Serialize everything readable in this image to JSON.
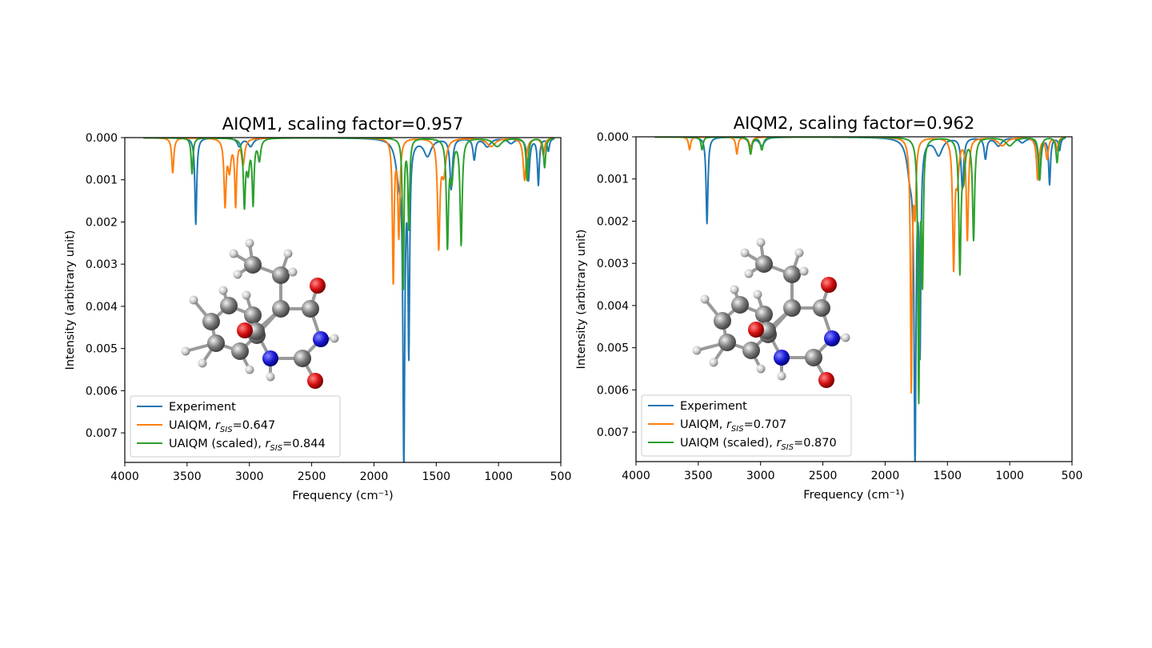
{
  "chart_data": [
    {
      "type": "line",
      "title": "AIQM1, scaling factor=0.957",
      "xlabel": "Frequency (cm⁻¹)",
      "ylabel": "Intensity (arbitrary unit)",
      "xlim": [
        4000,
        500
      ],
      "ylim": [
        0.0,
        0.0077
      ],
      "y_inverted": true,
      "grid": false,
      "legend_position": "lower-left",
      "x_ticks": [
        "4000",
        "3500",
        "3000",
        "2500",
        "2000",
        "1500",
        "1000",
        "500"
      ],
      "y_ticks": [
        "0.000",
        "0.001",
        "0.002",
        "0.003",
        "0.004",
        "0.005",
        "0.006",
        "0.007"
      ],
      "x_tick_values": [
        4000,
        3500,
        3000,
        2500,
        2000,
        1500,
        1000,
        500
      ],
      "y_tick_values": [
        0,
        0.001,
        0.002,
        0.003,
        0.004,
        0.005,
        0.006,
        0.007
      ],
      "series": [
        {
          "name": "Experiment",
          "legend_suffix": "",
          "color": "#1f77b4",
          "peaks": [
            [
              3430,
              0.00205,
              9
            ],
            [
              3080,
              0.0002,
              20
            ],
            [
              2990,
              0.0002,
              25
            ],
            [
              1760,
              0.00735,
              9
            ],
            [
              1720,
              0.0048,
              8
            ],
            [
              1800,
              0.0008,
              30
            ],
            [
              1570,
              0.0004,
              35
            ],
            [
              1380,
              0.0012,
              12
            ],
            [
              1195,
              0.0005,
              12
            ],
            [
              1090,
              0.0002,
              30
            ],
            [
              900,
              0.00012,
              30
            ],
            [
              760,
              0.001,
              12
            ],
            [
              680,
              0.0011,
              9
            ],
            [
              600,
              0.0003,
              10
            ]
          ]
        },
        {
          "name": "UAIQM, ",
          "legend_suffix": "=0.647",
          "color": "#ff7f0e",
          "peaks": [
            [
              3615,
              0.00083,
              10
            ],
            [
              3195,
              0.00155,
              10
            ],
            [
              3110,
              0.00155,
              9
            ],
            [
              3160,
              0.0007,
              14
            ],
            [
              3050,
              0.0006,
              15
            ],
            [
              1845,
              0.0034,
              8
            ],
            [
              1800,
              0.0023,
              10
            ],
            [
              1480,
              0.0025,
              11
            ],
            [
              1440,
              0.0008,
              20
            ],
            [
              1060,
              0.0002,
              40
            ],
            [
              790,
              0.001,
              14
            ],
            [
              640,
              0.0004,
              12
            ]
          ]
        },
        {
          "name": "UAIQM (scaled), ",
          "legend_suffix": "=0.844",
          "color": "#2ca02c",
          "peaks": [
            [
              3460,
              0.00085,
              9
            ],
            [
              3040,
              0.00155,
              10
            ],
            [
              2970,
              0.0015,
              9
            ],
            [
              3010,
              0.0007,
              13
            ],
            [
              2920,
              0.0005,
              13
            ],
            [
              1765,
              0.0036,
              7
            ],
            [
              1720,
              0.0021,
              8
            ],
            [
              1410,
              0.0025,
              10
            ],
            [
              1375,
              0.0009,
              14
            ],
            [
              1300,
              0.0025,
              10
            ],
            [
              1010,
              0.0002,
              40
            ],
            [
              770,
              0.001,
              10
            ],
            [
              630,
              0.0007,
              10
            ]
          ]
        }
      ]
    },
    {
      "type": "line",
      "title": "AIQM2, scaling factor=0.962",
      "xlabel": "Frequency (cm⁻¹)",
      "ylabel": "Intensity (arbitrary unit)",
      "xlim": [
        4000,
        500
      ],
      "ylim": [
        0.0,
        0.0077
      ],
      "y_inverted": true,
      "grid": false,
      "legend_position": "lower-left",
      "x_ticks": [
        "4000",
        "3500",
        "3000",
        "2500",
        "2000",
        "1500",
        "1000",
        "500"
      ],
      "y_ticks": [
        "0.000",
        "0.001",
        "0.002",
        "0.003",
        "0.004",
        "0.005",
        "0.006",
        "0.007"
      ],
      "x_tick_values": [
        4000,
        3500,
        3000,
        2500,
        2000,
        1500,
        1000,
        500
      ],
      "y_tick_values": [
        0,
        0.001,
        0.002,
        0.003,
        0.004,
        0.005,
        0.006,
        0.007
      ],
      "series": [
        {
          "name": "Experiment",
          "legend_suffix": "",
          "color": "#1f77b4",
          "peaks": [
            [
              3430,
              0.00205,
              9
            ],
            [
              3080,
              0.0002,
              20
            ],
            [
              2990,
              0.0002,
              25
            ],
            [
              1760,
              0.00735,
              9
            ],
            [
              1720,
              0.0048,
              8
            ],
            [
              1800,
              0.0008,
              30
            ],
            [
              1570,
              0.0004,
              35
            ],
            [
              1380,
              0.0012,
              12
            ],
            [
              1195,
              0.0005,
              12
            ],
            [
              1090,
              0.0002,
              30
            ],
            [
              900,
              0.00012,
              30
            ],
            [
              760,
              0.001,
              12
            ],
            [
              680,
              0.0011,
              9
            ],
            [
              600,
              0.0003,
              10
            ]
          ]
        },
        {
          "name": "UAIQM, ",
          "legend_suffix": "=0.707",
          "color": "#ff7f0e",
          "peaks": [
            [
              3570,
              0.0003,
              10
            ],
            [
              3190,
              0.0004,
              10
            ],
            [
              3080,
              0.0003,
              12
            ],
            [
              1790,
              0.0059,
              8
            ],
            [
              1760,
              0.0016,
              10
            ],
            [
              1450,
              0.003,
              10
            ],
            [
              1420,
              0.0009,
              14
            ],
            [
              1340,
              0.0024,
              10
            ],
            [
              1060,
              0.0002,
              40
            ],
            [
              775,
              0.001,
              12
            ],
            [
              700,
              0.0005,
              12
            ],
            [
              620,
              0.0003,
              10
            ]
          ]
        },
        {
          "name": "UAIQM (scaled), ",
          "legend_suffix": "=0.870",
          "color": "#2ca02c",
          "peaks": [
            [
              3470,
              0.0003,
              10
            ],
            [
              3080,
              0.0004,
              12
            ],
            [
              2990,
              0.0003,
              14
            ],
            [
              1730,
              0.0061,
              8
            ],
            [
              1700,
              0.0032,
              8
            ],
            [
              1400,
              0.0031,
              10
            ],
            [
              1370,
              0.0008,
              14
            ],
            [
              1290,
              0.0024,
              10
            ],
            [
              1000,
              0.0002,
              40
            ],
            [
              760,
              0.001,
              10
            ],
            [
              620,
              0.0006,
              10
            ]
          ]
        }
      ]
    }
  ]
}
